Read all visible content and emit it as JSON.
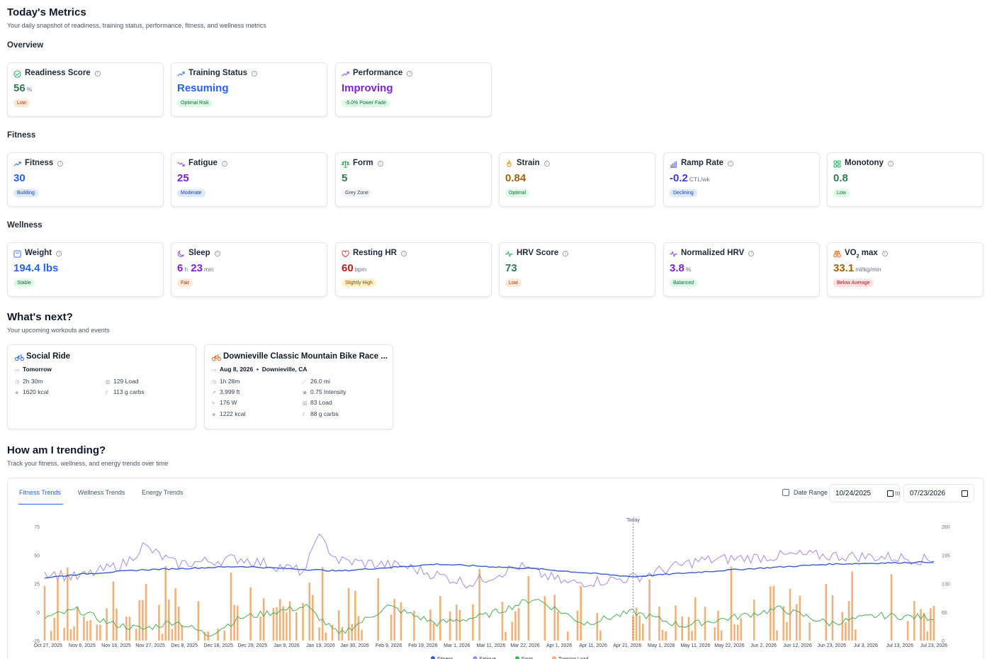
{
  "header": {
    "title": "Today's Metrics",
    "subtitle": "Your daily snapshot of readiness, training status, performance, fitness, and wellness metrics"
  },
  "overview": {
    "section": "Overview",
    "cards": [
      {
        "title": "Readiness Score",
        "value": "56",
        "unit": "%",
        "badge": "Low",
        "icon": "check-circle-icon"
      },
      {
        "title": "Training Status",
        "value": "Resuming",
        "unit": "",
        "badge": "Optimal Risk",
        "icon": "trending-up-icon"
      },
      {
        "title": "Performance",
        "value": "Improving",
        "unit": "",
        "badge": "-5.0% Power Fade",
        "icon": "trending-up-icon"
      }
    ]
  },
  "fitness": {
    "section": "Fitness",
    "cards": [
      {
        "title": "Fitness",
        "value": "30",
        "unit": "",
        "badge": "Building",
        "icon": "trending-up-icon"
      },
      {
        "title": "Fatigue",
        "value": "25",
        "unit": "",
        "badge": "Moderate",
        "icon": "trending-down-icon"
      },
      {
        "title": "Form",
        "value": "5",
        "unit": "",
        "badge": "Grey Zone",
        "icon": "scale-icon"
      },
      {
        "title": "Strain",
        "value": "0.84",
        "unit": "",
        "badge": "Optimal",
        "icon": "flame-icon"
      },
      {
        "title": "Ramp Rate",
        "value": "-0.2",
        "unit": "CTL/wk",
        "badge": "Declining",
        "icon": "bar-chart-icon"
      },
      {
        "title": "Monotony",
        "value": "0.8",
        "unit": "",
        "badge": "Low",
        "icon": "grid-icon"
      }
    ]
  },
  "wellness": {
    "section": "Wellness",
    "cards": [
      {
        "title": "Weight",
        "value": "194.4 lbs",
        "unit": "",
        "badge": "Stable",
        "icon": "scale-box-icon"
      },
      {
        "title": "Sleep",
        "value_h": "6",
        "unit_h": "h",
        "value_m": "23",
        "unit_m": "min",
        "badge": "Fair",
        "icon": "moon-icon"
      },
      {
        "title": "Resting HR",
        "value": "60",
        "unit": "bpm",
        "badge": "Slightly High",
        "icon": "heart-icon"
      },
      {
        "title": "HRV Score",
        "value": "73",
        "unit": "",
        "badge": "Low",
        "icon": "pulse-icon"
      },
      {
        "title": "Normalized HRV",
        "value": "3.8",
        "unit": "%",
        "badge": "Balanced",
        "icon": "pulse-icon"
      },
      {
        "title": "VO",
        "title_sub": "2",
        "title_rest": " max",
        "value": "33.1",
        "unit": "ml/kg/min",
        "badge": "Below Average",
        "icon": "binoculars-icon"
      }
    ]
  },
  "next": {
    "title": "What's next?",
    "subtitle": "Your upcoming workouts and events",
    "workouts": [
      {
        "title": "Social Ride",
        "date": "Tomorrow",
        "duration": "2h 30m",
        "load": "129 Load",
        "kcal": "1620 kcal",
        "carbs": "113 g carbs"
      },
      {
        "title": "Downieville Classic Mountain Bike Race ...",
        "date": "Aug 8, 2026",
        "sep": "•",
        "location": "Downieville, CA",
        "duration": "1h 28m",
        "distance": "26.0 mi",
        "elevation": "3,999 ft",
        "intensity": "0.75 Intensity",
        "power": "176 W",
        "load": "83 Load",
        "kcal": "1222 kcal",
        "carbs": "88 g carbs"
      }
    ]
  },
  "trending": {
    "title": "How am I trending?",
    "subtitle": "Track your fitness, wellness, and energy trends over time",
    "tabs": [
      "Fitness Trends",
      "Wellness Trends",
      "Energy Trends"
    ],
    "date_range_label": "Date Range",
    "date_from": "10/24/2025",
    "date_to": "07/23/2026",
    "to_label": "to"
  },
  "chart_data": {
    "type": "line",
    "today_label": "Today",
    "x_ticks": [
      "Oct 27, 2025",
      "Nov 6, 2025",
      "Nov 16, 2025",
      "Nov 27, 2025",
      "Dec 8, 2025",
      "Dec 18, 2025",
      "Dec 29, 2025",
      "Jan 9, 2026",
      "Jan 19, 2026",
      "Jan 30, 2026",
      "Feb 9, 2026",
      "Feb 19, 2026",
      "Mar 1, 2026",
      "Mar 11, 2026",
      "Mar 22, 2026",
      "Apr 1, 2026",
      "Apr 11, 2026",
      "Apr 21, 2026",
      "May 1, 2026",
      "May 11, 2026",
      "May 22, 2026",
      "Jun 2, 2026",
      "Jun 12, 2026",
      "Jun 23, 2026",
      "Jul 3, 2026",
      "Jul 13, 2026",
      "Jul 23, 2026"
    ],
    "y_left_ticks": [
      "75",
      "50",
      "25",
      "0",
      "-25"
    ],
    "y_right_ticks": [
      "260",
      "195",
      "130",
      "65",
      "0"
    ],
    "ylim_left": [
      -25,
      75
    ],
    "ylim_right": [
      0,
      260
    ],
    "legend": [
      "Fitness",
      "Fatigue",
      "Form",
      "Training Load"
    ],
    "colors": {
      "fitness": "#3b5bcc",
      "fatigue": "#a48ae0",
      "form": "#4caf50",
      "load": "#f0b27a"
    },
    "today_index": 180,
    "n_days": 273,
    "fitness_keypoints": [
      [
        0,
        30
      ],
      [
        10,
        33
      ],
      [
        30,
        37
      ],
      [
        60,
        40
      ],
      [
        90,
        36
      ],
      [
        120,
        42
      ],
      [
        150,
        38
      ],
      [
        180,
        31
      ],
      [
        210,
        37
      ],
      [
        240,
        42
      ],
      [
        273,
        44
      ]
    ],
    "fatigue_keypoints": [
      [
        0,
        35
      ],
      [
        10,
        30
      ],
      [
        25,
        43
      ],
      [
        30,
        58
      ],
      [
        40,
        42
      ],
      [
        60,
        47
      ],
      [
        80,
        35
      ],
      [
        83,
        68
      ],
      [
        90,
        45
      ],
      [
        110,
        40
      ],
      [
        130,
        25
      ],
      [
        145,
        40
      ],
      [
        160,
        25
      ],
      [
        180,
        30
      ],
      [
        200,
        45
      ],
      [
        230,
        50
      ],
      [
        260,
        48
      ],
      [
        273,
        45
      ]
    ],
    "form_keypoints": [
      [
        0,
        -5
      ],
      [
        10,
        2
      ],
      [
        20,
        -10
      ],
      [
        30,
        -15
      ],
      [
        40,
        -8
      ],
      [
        50,
        -20
      ],
      [
        60,
        -5
      ],
      [
        70,
        0
      ],
      [
        80,
        5
      ],
      [
        90,
        -20
      ],
      [
        105,
        5
      ],
      [
        120,
        -10
      ],
      [
        135,
        -3
      ],
      [
        150,
        12
      ],
      [
        165,
        -10
      ],
      [
        180,
        0
      ],
      [
        195,
        -12
      ],
      [
        210,
        -5
      ],
      [
        225,
        3
      ],
      [
        240,
        -10
      ],
      [
        255,
        -3
      ],
      [
        273,
        -5
      ]
    ]
  }
}
